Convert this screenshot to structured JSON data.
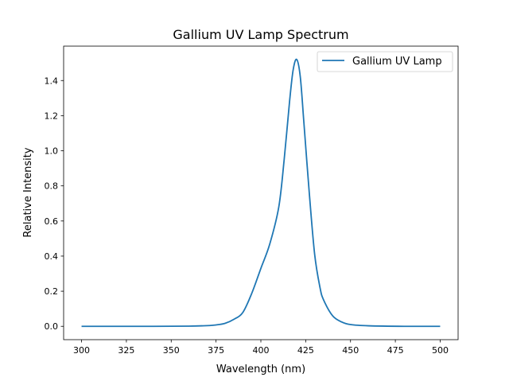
{
  "chart_data": {
    "type": "line",
    "title": "Gallium UV Lamp Spectrum",
    "xlabel": "Wavelength (nm)",
    "ylabel": "Relative Intensity",
    "xlim": [
      290,
      510
    ],
    "ylim": [
      -0.076,
      1.596
    ],
    "xticks": [
      300,
      325,
      350,
      375,
      400,
      425,
      450,
      475,
      500
    ],
    "yticks": [
      0.0,
      0.2,
      0.4,
      0.6,
      0.8,
      1.0,
      1.2,
      1.4
    ],
    "grid": false,
    "legend_placement": "upper right",
    "series": [
      {
        "name": "Gallium UV Lamp",
        "color": "#1f77b4",
        "x": [
          300,
          340,
          360,
          370,
          375,
          380,
          385,
          390,
          395,
          400,
          405,
          410,
          413,
          416,
          418,
          420,
          422,
          424,
          427,
          430,
          433,
          435,
          440,
          445,
          450,
          460,
          480,
          500
        ],
        "y": [
          0.0,
          0.0,
          0.001,
          0.004,
          0.008,
          0.017,
          0.04,
          0.08,
          0.19,
          0.33,
          0.47,
          0.68,
          0.95,
          1.28,
          1.46,
          1.52,
          1.42,
          1.16,
          0.76,
          0.41,
          0.22,
          0.15,
          0.06,
          0.025,
          0.01,
          0.003,
          0.0,
          0.0
        ]
      }
    ]
  }
}
